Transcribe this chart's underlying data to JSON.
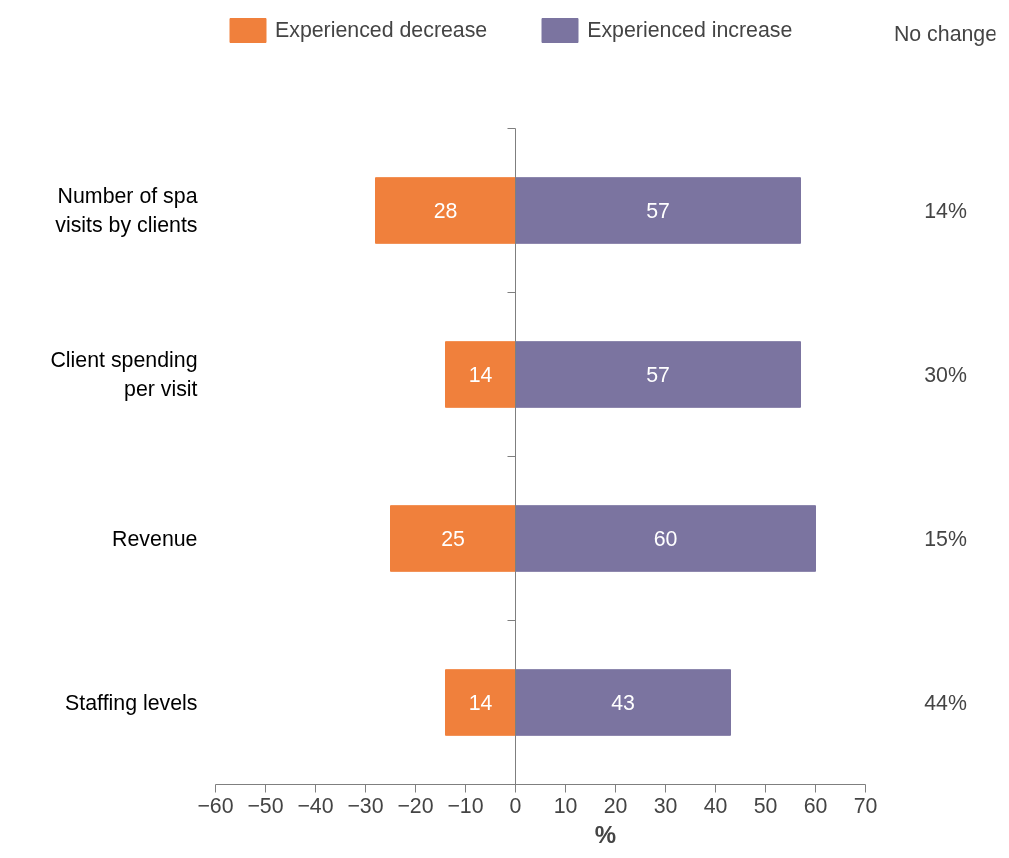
{
  "chart_data": {
    "type": "bar",
    "orientation": "horizontal",
    "xlabel": "%",
    "categories": [
      "Number of spa\nvisits by clients",
      "Client spending\nper visit",
      "Revenue",
      "Staffing levels"
    ],
    "series": [
      {
        "name": "Experienced decrease",
        "color": "#f0803c",
        "values": [
          28,
          14,
          25,
          14
        ],
        "base": [
          -28,
          -14,
          -25,
          -14
        ]
      },
      {
        "name": "Experienced increase",
        "color": "#7b74a0",
        "values": [
          57,
          57,
          60,
          43
        ]
      }
    ],
    "data_labels": true,
    "annotations": [
      "No change",
      "14%",
      "30%",
      "15%",
      "44%"
    ],
    "xlim": [
      -60,
      70
    ],
    "xticks": [
      -60,
      -50,
      -40,
      -30,
      -20,
      -10,
      0,
      10,
      20,
      30,
      40,
      50,
      60,
      70
    ],
    "legend": "top left"
  }
}
